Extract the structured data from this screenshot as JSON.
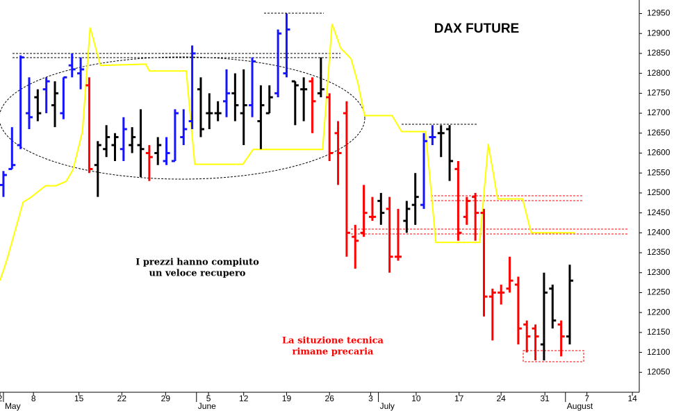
{
  "chart_data": {
    "type": "ohlc",
    "title": "DAX FUTURE",
    "annotations": [
      [
        "I prezzi hanno compiuto",
        "un veloce recupero"
      ],
      [
        "La situzione tecnica",
        "rimane precaria"
      ]
    ],
    "xlim": [
      -0.4,
      74.1
    ],
    "ylim": [
      12000,
      12984
    ],
    "yticks": [
      12050,
      12100,
      12150,
      12200,
      12250,
      12300,
      12350,
      12400,
      12450,
      12500,
      12550,
      12600,
      12650,
      12700,
      12750,
      12800,
      12850,
      12900,
      12950
    ],
    "xticks": [
      {
        "value": -0.4,
        "label": "2"
      },
      {
        "value": 3.5,
        "label": "8"
      },
      {
        "value": 8.8,
        "label": "15"
      },
      {
        "value": 13.8,
        "label": "22"
      },
      {
        "value": 18.9,
        "label": "29"
      },
      {
        "value": 23.9,
        "label": "5"
      },
      {
        "value": 28,
        "label": "12"
      },
      {
        "value": 33,
        "label": "19"
      },
      {
        "value": 38,
        "label": "26"
      },
      {
        "value": 42.8,
        "label": "3"
      },
      {
        "value": 48.1,
        "label": "10"
      },
      {
        "value": 53.1,
        "label": "17"
      },
      {
        "value": 58,
        "label": "24"
      },
      {
        "value": 63.1,
        "label": "31"
      },
      {
        "value": 68,
        "label": "7"
      },
      {
        "value": 73.3,
        "label": "14"
      }
    ],
    "month_ticks": [
      {
        "value": 0,
        "label": "May"
      },
      {
        "value": 22.5,
        "label": "June"
      },
      {
        "value": 43.7,
        "label": "July"
      },
      {
        "value": 65.5,
        "label": "August"
      }
    ],
    "palette": {
      "blue": "#1414ff",
      "black": "#000000",
      "red": "#ff0000"
    },
    "x": [
      0,
      1,
      2,
      3,
      4,
      5,
      6,
      7,
      8,
      9,
      10,
      11,
      12,
      13,
      14,
      15,
      16,
      17,
      18,
      19,
      20,
      21,
      22,
      23,
      24,
      25,
      26,
      27,
      28,
      29,
      30,
      31,
      32,
      33,
      34,
      35,
      36,
      37,
      38,
      39,
      40,
      41,
      42,
      43,
      44,
      45,
      46,
      47,
      48,
      49,
      50,
      51,
      52,
      53,
      54,
      55,
      56,
      57,
      58,
      59,
      60,
      61,
      62,
      63,
      64,
      65,
      66
    ],
    "open": [
      12520,
      12560,
      12620,
      12700,
      12740,
      12760,
      12720,
      12700,
      12820,
      12800,
      12770,
      12570,
      12610,
      12620,
      12610,
      12620,
      12620,
      12600,
      12600,
      12580,
      12580,
      12640,
      12680,
      12760,
      12700,
      12700,
      12730,
      12750,
      12700,
      12720,
      12680,
      12700,
      12750,
      12800,
      12780,
      12760,
      12780,
      12750,
      12740,
      12650,
      12700,
      12390,
      12400,
      12440,
      12480,
      12460,
      12340,
      12430,
      12470,
      12470,
      12640,
      12650,
      12660,
      12560,
      12440,
      12490,
      12450,
      12240,
      12250,
      12260,
      12270,
      12170,
      12160,
      12120,
      12260,
      12170,
      12140
    ],
    "high": [
      12555,
      12665,
      12845,
      12790,
      12760,
      12790,
      12780,
      12790,
      12850,
      12840,
      12790,
      12630,
      12670,
      12650,
      12690,
      12665,
      12710,
      12620,
      12640,
      12640,
      12710,
      12710,
      12870,
      12790,
      12750,
      12730,
      12810,
      12800,
      12810,
      12840,
      12770,
      12770,
      12910,
      12950,
      12780,
      12790,
      12790,
      12840,
      12750,
      12680,
      12730,
      12420,
      12520,
      12490,
      12500,
      12490,
      12460,
      12480,
      12550,
      12650,
      12670,
      12670,
      12670,
      12580,
      12490,
      12500,
      12460,
      12260,
      12270,
      12340,
      12290,
      12180,
      12170,
      12300,
      12270,
      12180,
      12320
    ],
    "low": [
      12490,
      12560,
      12610,
      12660,
      12680,
      12700,
      12665,
      12685,
      12790,
      12760,
      12550,
      12490,
      12590,
      12580,
      12580,
      12600,
      12540,
      12530,
      12570,
      12570,
      12580,
      12620,
      12660,
      12640,
      12660,
      12680,
      12690,
      12680,
      12620,
      12690,
      12610,
      12700,
      12740,
      12790,
      12670,
      12680,
      12650,
      12740,
      12580,
      12520,
      12340,
      12310,
      12390,
      12430,
      12420,
      12300,
      12330,
      12400,
      12420,
      12460,
      12620,
      12590,
      12530,
      12380,
      12420,
      12380,
      12190,
      12130,
      12220,
      12250,
      12120,
      12100,
      12080,
      12080,
      12160,
      12090,
      12120
    ],
    "close": [
      12545,
      12570,
      12840,
      12690,
      12700,
      12780,
      12750,
      12790,
      12810,
      12810,
      12560,
      12620,
      12640,
      12640,
      12660,
      12640,
      12610,
      12590,
      12620,
      12600,
      12700,
      12660,
      12850,
      12660,
      12700,
      12700,
      12750,
      12720,
      12720,
      12830,
      12720,
      12740,
      12900,
      12910,
      12770,
      12760,
      12730,
      12760,
      12600,
      12600,
      12400,
      12380,
      12450,
      12440,
      12450,
      12340,
      12340,
      12460,
      12490,
      12630,
      12640,
      12650,
      12580,
      12400,
      12480,
      12450,
      12240,
      12250,
      12250,
      12280,
      12160,
      12140,
      12140,
      12250,
      12180,
      12140,
      12280
    ],
    "colors": [
      "blue",
      "blue",
      "blue",
      "blue",
      "black",
      "blue",
      "black",
      "blue",
      "blue",
      "blue",
      "red",
      "black",
      "black",
      "black",
      "blue",
      "black",
      "black",
      "red",
      "black",
      "blue",
      "blue",
      "blue",
      "blue",
      "black",
      "black",
      "black",
      "blue",
      "black",
      "black",
      "blue",
      "black",
      "black",
      "blue",
      "blue",
      "black",
      "black",
      "red",
      "black",
      "red",
      "red",
      "red",
      "red",
      "red",
      "red",
      "black",
      "red",
      "red",
      "black",
      "black",
      "blue",
      "blue",
      "black",
      "black",
      "red",
      "red",
      "red",
      "red",
      "red",
      "red",
      "red",
      "red",
      "red",
      "red",
      "black",
      "black",
      "red",
      "black"
    ],
    "line": {
      "color": "#ffff00",
      "x": [
        -0.4,
        0.4,
        2.3,
        3.2,
        4.9,
        6.1,
        7.3,
        8.1,
        9.2,
        10.1,
        11.3,
        16.6,
        17,
        21.3,
        22.3,
        27.9,
        29.1,
        37.2,
        38.3,
        39.3,
        40.5,
        41.3,
        42.1,
        45.3,
        46.4,
        49.2,
        50.4,
        55.5,
        56.5,
        57.6,
        60.5,
        61.5,
        66.6
      ],
      "values": [
        12280,
        12332,
        12477,
        12489,
        12518,
        12518,
        12529,
        12558,
        12654,
        12915,
        12820,
        12823,
        12806,
        12806,
        12572,
        12572,
        12609,
        12609,
        12924,
        12863,
        12837,
        12776,
        12694,
        12694,
        12654,
        12654,
        12376,
        12376,
        12623,
        12485,
        12485,
        12400,
        12400
      ]
    }
  }
}
